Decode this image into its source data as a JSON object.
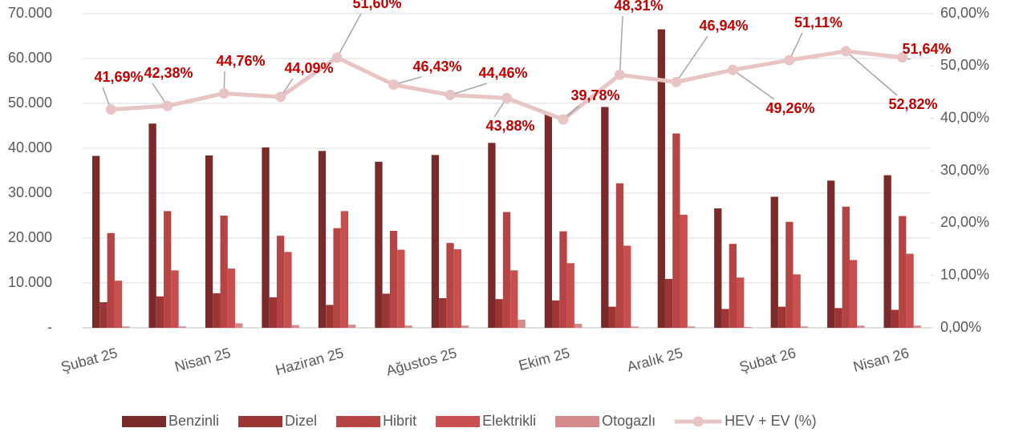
{
  "chart_data": {
    "type": "bar_line",
    "categories": [
      "Şubat 25",
      null,
      "Nisan 25",
      null,
      "Haziran 25",
      null,
      "Ağustos 25",
      null,
      "Ekim 25",
      null,
      "Aralık 25",
      null,
      "Şubat 26",
      null,
      "Nisan 26"
    ],
    "series": [
      {
        "name": "Benzinli",
        "color": "#7b2a2a",
        "values": [
          38300,
          45500,
          38400,
          40200,
          39400,
          37000,
          38500,
          41200,
          47500,
          49200,
          66500,
          26600,
          29200,
          32800,
          34000
        ]
      },
      {
        "name": "Dizel",
        "color": "#9e3535",
        "values": [
          5700,
          7000,
          7700,
          6800,
          5100,
          7600,
          6600,
          6400,
          6100,
          4700,
          10900,
          4200,
          4700,
          4400,
          4000
        ]
      },
      {
        "name": "Hibrit",
        "color": "#b64444",
        "values": [
          21100,
          26000,
          25000,
          20500,
          22200,
          21600,
          18900,
          25800,
          21500,
          32200,
          43300,
          18700,
          23600,
          27000,
          24900
        ]
      },
      {
        "name": "Elektrikli",
        "color": "#c94e4e",
        "values": [
          10500,
          12800,
          13200,
          16900,
          26000,
          17400,
          17500,
          12800,
          14400,
          18300,
          25200,
          11200,
          11900,
          15100,
          16500
        ]
      },
      {
        "name": "Otogazlı",
        "color": "#d48a8a",
        "values": [
          300,
          300,
          1000,
          600,
          700,
          500,
          500,
          1800,
          900,
          300,
          300,
          200,
          300,
          500,
          500
        ]
      },
      {
        "name": "HEV + EV (%)",
        "color": "#e8c4c4",
        "axis": "y2",
        "values": [
          41.69,
          42.38,
          44.76,
          44.09,
          51.6,
          46.43,
          44.46,
          43.88,
          39.78,
          48.31,
          46.94,
          49.26,
          51.11,
          52.82,
          51.64
        ],
        "value_labels": [
          "41,69%",
          "42,38%",
          "44,76%",
          "44,09%",
          "51,60%",
          "46,43%",
          "44,46%",
          "43,88%",
          "39,78%",
          "48,31%",
          "46,94%",
          "49,26%",
          "51,11%",
          "52,82%",
          "51,64%"
        ]
      }
    ],
    "ylim": [
      0,
      70000
    ],
    "yticks": [
      {
        "value": 0,
        "label": "-"
      },
      {
        "value": 10000,
        "label": "10.000"
      },
      {
        "value": 20000,
        "label": "20.000"
      },
      {
        "value": 30000,
        "label": "30.000"
      },
      {
        "value": 40000,
        "label": "40.000"
      },
      {
        "value": 50000,
        "label": "50.000"
      },
      {
        "value": 60000,
        "label": "60.000"
      },
      {
        "value": 70000,
        "label": "70.000"
      }
    ],
    "y2lim": [
      0,
      60
    ],
    "y2ticks": [
      {
        "value": 0,
        "label": "0,00%"
      },
      {
        "value": 10,
        "label": "10,00%"
      },
      {
        "value": 20,
        "label": "20,00%"
      },
      {
        "value": 30,
        "label": "30,00%"
      },
      {
        "value": 40,
        "label": "40,00%"
      },
      {
        "value": 50,
        "label": "50,00%"
      },
      {
        "value": 60,
        "label": "60,00%"
      }
    ],
    "grid": true,
    "legend": "bottom"
  }
}
